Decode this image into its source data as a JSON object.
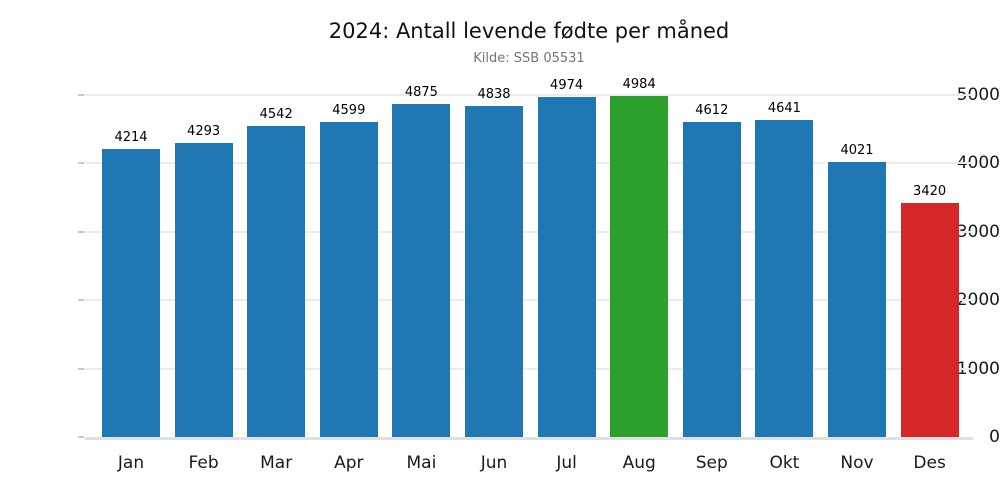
{
  "chart_data": {
    "type": "bar",
    "title": "2024: Antall levende fødte per måned",
    "subtitle": "Kilde: SSB 05531",
    "categories": [
      "Jan",
      "Feb",
      "Mar",
      "Apr",
      "Mai",
      "Jun",
      "Jul",
      "Aug",
      "Sep",
      "Okt",
      "Nov",
      "Des"
    ],
    "values": [
      4214,
      4293,
      4542,
      4599,
      4875,
      4838,
      4974,
      4984,
      4612,
      4641,
      4021,
      3420
    ],
    "bar_colors": [
      "#1f77b4",
      "#1f77b4",
      "#1f77b4",
      "#1f77b4",
      "#1f77b4",
      "#1f77b4",
      "#1f77b4",
      "#2ca02c",
      "#1f77b4",
      "#1f77b4",
      "#1f77b4",
      "#d62728"
    ],
    "xlabel": "",
    "ylabel": "",
    "ylim": [
      0,
      5000
    ],
    "yticks": [
      0,
      1000,
      2000,
      3000,
      4000,
      5000
    ],
    "grid": "horizontal",
    "legend": false,
    "colors": {
      "bar_default": "#1f77b4",
      "bar_highlight_green": "#2ca02c",
      "bar_highlight_red": "#d62728",
      "gridline": "#ececec",
      "axis_line": "#e0e0e0",
      "subtitle_text": "#757575",
      "label_text": "#1a1a1a"
    }
  }
}
